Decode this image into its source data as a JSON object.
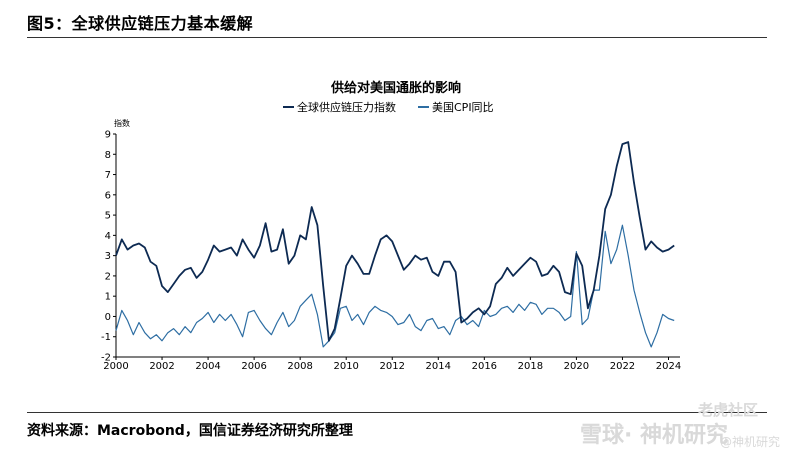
{
  "figure": {
    "title": "图5：全球供应链压力基本缓解",
    "source": "资料来源：Macrobond，国信证券经济研究所整理"
  },
  "watermark": {
    "logo": "雪球· 神机研究",
    "brand": "老虎社区",
    "handle": "@神机研究"
  },
  "colors": {
    "gscpi": "#0d2a52",
    "cpi": "#2e6ea3",
    "axis": "#000000"
  },
  "chart_data": {
    "type": "line",
    "title": "供给对美国通胀的影响",
    "ylabel": "指数",
    "xlim": [
      2000,
      2024.5
    ],
    "ylim": [
      -2,
      9
    ],
    "x_ticks": [
      2000,
      2002,
      2004,
      2006,
      2008,
      2010,
      2012,
      2014,
      2016,
      2018,
      2020,
      2022,
      2024
    ],
    "y_ticks": [
      -2,
      -1,
      0,
      1,
      2,
      3,
      4,
      5,
      6,
      7,
      8,
      9
    ],
    "legend_position": "top-center",
    "series": [
      {
        "name": "全球供应链压力指数",
        "color": "#0d2a52",
        "x": [
          2000.0,
          2000.25,
          2000.5,
          2000.75,
          2001.0,
          2001.25,
          2001.5,
          2001.75,
          2002.0,
          2002.25,
          2002.5,
          2002.75,
          2003.0,
          2003.25,
          2003.5,
          2003.75,
          2004.0,
          2004.25,
          2004.5,
          2004.75,
          2005.0,
          2005.25,
          2005.5,
          2005.75,
          2006.0,
          2006.25,
          2006.5,
          2006.75,
          2007.0,
          2007.25,
          2007.5,
          2007.75,
          2008.0,
          2008.25,
          2008.5,
          2008.75,
          2009.0,
          2009.25,
          2009.5,
          2009.75,
          2010.0,
          2010.25,
          2010.5,
          2010.75,
          2011.0,
          2011.25,
          2011.5,
          2011.75,
          2012.0,
          2012.25,
          2012.5,
          2012.75,
          2013.0,
          2013.25,
          2013.5,
          2013.75,
          2014.0,
          2014.25,
          2014.5,
          2014.75,
          2015.0,
          2015.25,
          2015.5,
          2015.75,
          2016.0,
          2016.25,
          2016.5,
          2016.75,
          2017.0,
          2017.25,
          2017.5,
          2017.75,
          2018.0,
          2018.25,
          2018.5,
          2018.75,
          2019.0,
          2019.25,
          2019.5,
          2019.75,
          2020.0,
          2020.25,
          2020.5,
          2020.75,
          2021.0,
          2021.25,
          2021.5,
          2021.75,
          2022.0,
          2022.25,
          2022.5,
          2022.75,
          2023.0,
          2023.25,
          2023.5,
          2023.75,
          2024.0,
          2024.25
        ],
        "values": [
          3.0,
          3.8,
          3.3,
          3.5,
          3.6,
          3.4,
          2.7,
          2.5,
          1.5,
          1.2,
          1.6,
          2.0,
          2.3,
          2.4,
          1.9,
          2.2,
          2.8,
          3.5,
          3.2,
          3.3,
          3.4,
          3.0,
          3.8,
          3.3,
          2.9,
          3.5,
          4.6,
          3.2,
          3.3,
          4.3,
          2.6,
          3.0,
          4.0,
          3.8,
          5.4,
          4.5,
          1.5,
          -1.2,
          -0.6,
          0.9,
          2.5,
          3.0,
          2.6,
          2.1,
          2.1,
          3.0,
          3.8,
          4.0,
          3.7,
          3.0,
          2.3,
          2.6,
          3.0,
          2.8,
          2.9,
          2.2,
          2.0,
          2.7,
          2.7,
          2.2,
          -0.3,
          -0.1,
          0.2,
          0.4,
          0.1,
          0.5,
          1.6,
          1.9,
          2.4,
          2.0,
          2.3,
          2.6,
          2.9,
          2.7,
          2.0,
          2.1,
          2.5,
          2.2,
          1.2,
          1.1,
          3.1,
          2.5,
          0.4,
          1.3,
          3.0,
          5.3,
          6.0,
          7.4,
          8.5,
          8.6,
          6.6,
          4.9,
          3.3,
          3.7,
          3.4,
          3.2,
          3.3,
          3.5
        ]
      },
      {
        "name": "美国CPI同比",
        "color": "#2e6ea3",
        "x": [
          2000.0,
          2000.25,
          2000.5,
          2000.75,
          2001.0,
          2001.25,
          2001.5,
          2001.75,
          2002.0,
          2002.25,
          2002.5,
          2002.75,
          2003.0,
          2003.25,
          2003.5,
          2003.75,
          2004.0,
          2004.25,
          2004.5,
          2004.75,
          2005.0,
          2005.25,
          2005.5,
          2005.75,
          2006.0,
          2006.25,
          2006.5,
          2006.75,
          2007.0,
          2007.25,
          2007.5,
          2007.75,
          2008.0,
          2008.25,
          2008.5,
          2008.75,
          2009.0,
          2009.25,
          2009.5,
          2009.75,
          2010.0,
          2010.25,
          2010.5,
          2010.75,
          2011.0,
          2011.25,
          2011.5,
          2011.75,
          2012.0,
          2012.25,
          2012.5,
          2012.75,
          2013.0,
          2013.25,
          2013.5,
          2013.75,
          2014.0,
          2014.25,
          2014.5,
          2014.75,
          2015.0,
          2015.25,
          2015.5,
          2015.75,
          2016.0,
          2016.25,
          2016.5,
          2016.75,
          2017.0,
          2017.25,
          2017.5,
          2017.75,
          2018.0,
          2018.25,
          2018.5,
          2018.75,
          2019.0,
          2019.25,
          2019.5,
          2019.75,
          2020.0,
          2020.25,
          2020.5,
          2020.75,
          2021.0,
          2021.25,
          2021.5,
          2021.75,
          2022.0,
          2022.25,
          2022.5,
          2022.75,
          2023.0,
          2023.25,
          2023.5,
          2023.75,
          2024.0,
          2024.25
        ],
        "values": [
          -0.7,
          0.3,
          -0.2,
          -0.9,
          -0.3,
          -0.8,
          -1.1,
          -0.9,
          -1.2,
          -0.8,
          -0.6,
          -0.9,
          -0.5,
          -0.8,
          -0.3,
          -0.1,
          0.2,
          -0.3,
          0.1,
          -0.2,
          0.1,
          -0.4,
          -1.0,
          0.2,
          0.3,
          -0.2,
          -0.6,
          -0.9,
          -0.3,
          0.2,
          -0.5,
          -0.2,
          0.5,
          0.8,
          1.1,
          0.1,
          -1.5,
          -1.2,
          -0.8,
          0.4,
          0.5,
          -0.2,
          0.1,
          -0.4,
          0.2,
          0.5,
          0.3,
          0.2,
          0.0,
          -0.4,
          -0.3,
          0.1,
          -0.5,
          -0.7,
          -0.2,
          -0.1,
          -0.6,
          -0.5,
          -0.9,
          -0.2,
          0.0,
          -0.4,
          -0.2,
          -0.5,
          0.3,
          0.0,
          0.1,
          0.4,
          0.5,
          0.2,
          0.6,
          0.3,
          0.7,
          0.6,
          0.1,
          0.4,
          0.4,
          0.2,
          -0.2,
          0.0,
          3.2,
          -0.4,
          -0.1,
          1.3,
          1.3,
          4.2,
          2.6,
          3.3,
          4.5,
          3.0,
          1.3,
          0.2,
          -0.8,
          -1.5,
          -0.8,
          0.1,
          -0.1,
          -0.2
        ]
      }
    ]
  }
}
